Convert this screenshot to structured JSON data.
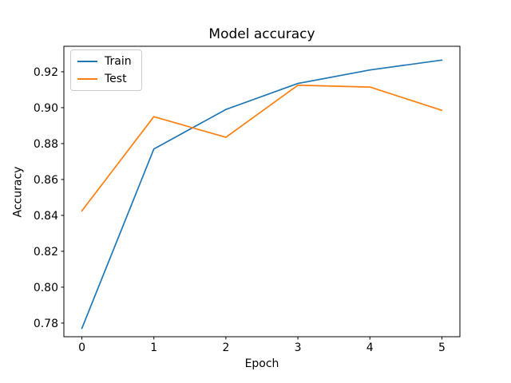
{
  "chart_data": {
    "type": "line",
    "title": "Model accuracy",
    "xlabel": "Epoch",
    "ylabel": "Accuracy",
    "x": [
      0,
      1,
      2,
      3,
      4,
      5
    ],
    "series": [
      {
        "name": "Train",
        "color": "#1f77b4",
        "values": [
          0.777,
          0.877,
          0.899,
          0.9135,
          0.921,
          0.9265
        ]
      },
      {
        "name": "Test",
        "color": "#ff7f0e",
        "values": [
          0.8425,
          0.895,
          0.8835,
          0.9125,
          0.9115,
          0.8985
        ]
      }
    ],
    "xlim": [
      -0.25,
      5.25
    ],
    "ylim": [
      0.7724,
      0.9342
    ],
    "xticks": [
      "0",
      "1",
      "2",
      "3",
      "4",
      "5"
    ],
    "yticks": [
      "0.78",
      "0.80",
      "0.82",
      "0.84",
      "0.86",
      "0.88",
      "0.90",
      "0.92"
    ],
    "grid": false,
    "legend": {
      "position": "upper-left",
      "entries": [
        "Train",
        "Test"
      ]
    },
    "colors": {
      "background": "#ffffff",
      "spine": "#000000",
      "tick_text": "#000000",
      "legend_border": "#cccccc"
    }
  }
}
